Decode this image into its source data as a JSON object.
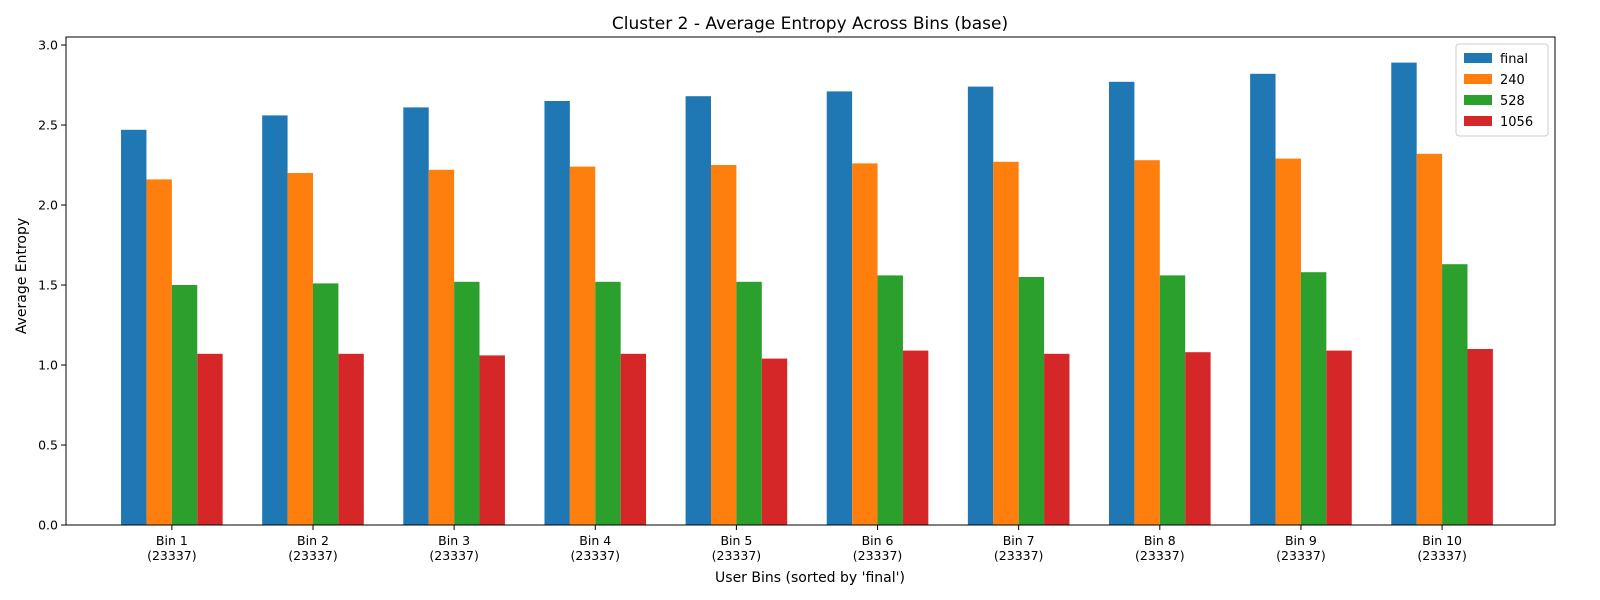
{
  "chart_data": {
    "type": "bar",
    "title": "Cluster 2 - Average Entropy Across Bins (base)",
    "xlabel": "User Bins (sorted by 'final')",
    "ylabel": "Average Entropy",
    "ylim": [
      0,
      3.05
    ],
    "yticks": [
      "0.0",
      "0.5",
      "1.0",
      "1.5",
      "2.0",
      "2.5",
      "3.0"
    ],
    "categories": [
      [
        "Bin 1",
        "(23337)"
      ],
      [
        "Bin 2",
        "(23337)"
      ],
      [
        "Bin 3",
        "(23337)"
      ],
      [
        "Bin 4",
        "(23337)"
      ],
      [
        "Bin 5",
        "(23337)"
      ],
      [
        "Bin 6",
        "(23337)"
      ],
      [
        "Bin 7",
        "(23337)"
      ],
      [
        "Bin 8",
        "(23337)"
      ],
      [
        "Bin 9",
        "(23337)"
      ],
      [
        "Bin 10",
        "(23337)"
      ]
    ],
    "series": [
      {
        "name": "final",
        "color": "#1f77b4",
        "values": [
          2.47,
          2.56,
          2.61,
          2.65,
          2.68,
          2.71,
          2.74,
          2.77,
          2.82,
          2.89
        ]
      },
      {
        "name": "240",
        "color": "#ff7f0e",
        "values": [
          2.16,
          2.2,
          2.22,
          2.24,
          2.25,
          2.26,
          2.27,
          2.28,
          2.29,
          2.32
        ]
      },
      {
        "name": "528",
        "color": "#2ca02c",
        "values": [
          1.5,
          1.51,
          1.52,
          1.52,
          1.52,
          1.56,
          1.55,
          1.56,
          1.58,
          1.63
        ]
      },
      {
        "name": "1056",
        "color": "#d62728",
        "values": [
          1.07,
          1.07,
          1.06,
          1.07,
          1.04,
          1.09,
          1.07,
          1.08,
          1.09,
          1.1
        ]
      }
    ],
    "grid": false,
    "legend": "top-right"
  }
}
